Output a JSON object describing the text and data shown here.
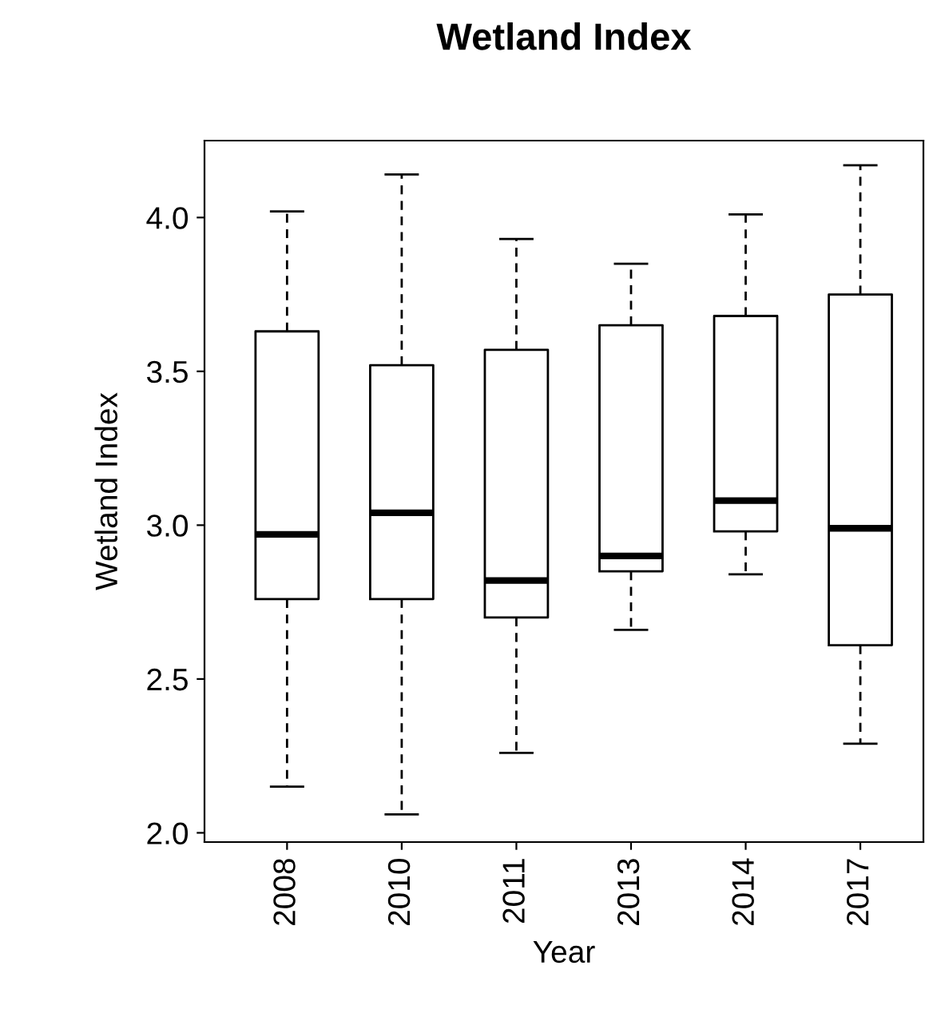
{
  "chart_data": {
    "type": "box",
    "title": "Wetland Index",
    "xlabel": "Year",
    "ylabel": "Wetland Index",
    "categories": [
      "2008",
      "2010",
      "2011",
      "2013",
      "2014",
      "2017"
    ],
    "boxes": [
      {
        "low": 2.15,
        "q1": 2.76,
        "median": 2.97,
        "q3": 3.63,
        "high": 4.02
      },
      {
        "low": 2.06,
        "q1": 2.76,
        "median": 3.04,
        "q3": 3.52,
        "high": 4.14
      },
      {
        "low": 2.26,
        "q1": 2.7,
        "median": 2.82,
        "q3": 3.57,
        "high": 3.93
      },
      {
        "low": 2.66,
        "q1": 2.85,
        "median": 2.9,
        "q3": 3.65,
        "high": 3.85
      },
      {
        "low": 2.84,
        "q1": 2.98,
        "median": 3.08,
        "q3": 3.68,
        "high": 4.01
      },
      {
        "low": 2.29,
        "q1": 2.61,
        "median": 2.99,
        "q3": 3.75,
        "high": 4.17
      }
    ],
    "ylim": [
      1.97,
      4.25
    ],
    "yticks": [
      {
        "value": 2,
        "label": "2.0"
      },
      2.5,
      {
        "value": 3,
        "label": "3.0"
      },
      3.5,
      {
        "value": 4,
        "label": "4.0"
      }
    ],
    "grid": false,
    "legend": false
  }
}
